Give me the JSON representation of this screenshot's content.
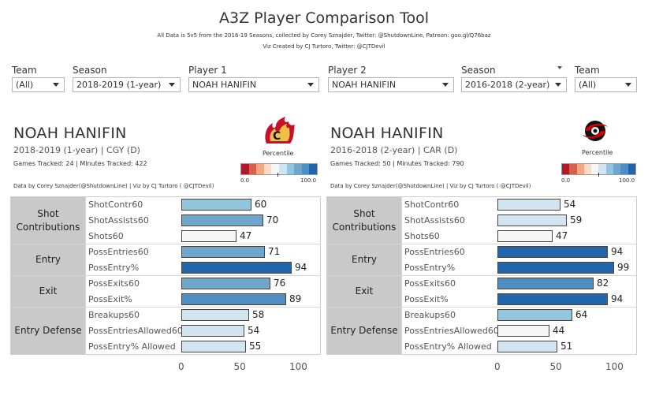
{
  "header": {
    "title": "A3Z Player Comparison Tool",
    "subtitle1": "All Data is 5v5 from the 2016-19 Seasons, collected by Corey Sznajder, Twitter: @ShutdownLine, Patreon: goo.gl/Q76baz",
    "subtitle2": "Viz Created by CJ Turtoro, Twitter: @CJTDevil"
  },
  "filters": {
    "team1_label": "Team",
    "team1_value": "(All)",
    "season1_label": "Season",
    "season1_value": "2018-2019 (1-year)",
    "player1_label": "Player 1",
    "player1_value": "NOAH HANIFIN",
    "player2_label": "Player 2",
    "player2_value": "NOAH HANIFIN",
    "season2_label": "Season",
    "season2_value": "2016-2018 (2-year)",
    "team2_label": "Team",
    "team2_value": "(All)"
  },
  "left": {
    "name": "NOAH HANIFIN",
    "info": "2018-2019 (1-year) | CGY (D)",
    "tracked": "Games Tracked: 24 | Minutes Tracked: 422",
    "credit": "Data by Corey Sznajder(@ShutdownLine) | Viz by CJ Turtoro ( @CJTDevil)",
    "logo": "calgary-flames-logo"
  },
  "right": {
    "name": "NOAH HANIFIN",
    "info": "2016-2018 (2-year) | CAR (D)",
    "tracked": "Games Tracked: 50 | Minutes Tracked: 790",
    "credit": "Data by Corey Sznajder(@ShutdownLine) | Viz by CJ Turtoro ( @CJTDevil)",
    "logo": "carolina-hurricanes-logo"
  },
  "legend": {
    "title": "Percentile",
    "min": "0.0",
    "max": "100.0",
    "colors": [
      "#b2182b",
      "#d6604d",
      "#f4a582",
      "#fddbc7",
      "#f7f7f7",
      "#d1e5f0",
      "#92c5de",
      "#6ea6cd",
      "#4d8ec4",
      "#2166ac"
    ]
  },
  "chart_data": {
    "type": "bar",
    "xlim": [
      0,
      100
    ],
    "ticks": [
      "0",
      "50",
      "100"
    ],
    "groups": [
      {
        "name": "Shot Contributions",
        "metrics": [
          "ShotContr60",
          "ShotAssists60",
          "Shots60"
        ]
      },
      {
        "name": "Entry",
        "metrics": [
          "PossEntries60",
          "PossEntry%"
        ]
      },
      {
        "name": "Exit",
        "metrics": [
          "PossExits60",
          "PossExit%"
        ]
      },
      {
        "name": "Entry Defense",
        "metrics": [
          "Breakups60",
          "PossEntriesAllowed60",
          "PossEntry% Allowed"
        ]
      }
    ],
    "series": [
      {
        "name": "2018-2019 (1-year) | CGY (D)",
        "values": [
          60,
          70,
          47,
          71,
          94,
          76,
          89,
          58,
          54,
          55
        ]
      },
      {
        "name": "2016-2018 (2-year) | CAR (D)",
        "values": [
          54,
          59,
          47,
          94,
          99,
          82,
          94,
          64,
          44,
          51
        ]
      }
    ]
  }
}
